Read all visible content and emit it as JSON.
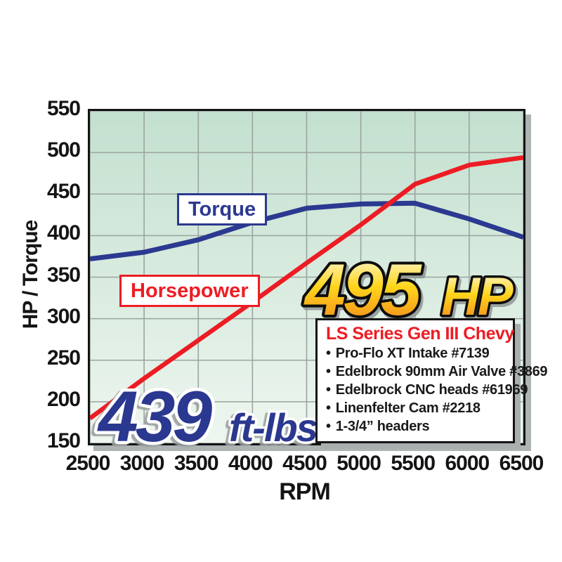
{
  "chart_data": {
    "type": "line",
    "title": "",
    "xlabel": "RPM",
    "ylabel": "HP / Torque",
    "x": [
      2500,
      3000,
      3500,
      4000,
      4500,
      5000,
      5500,
      6000,
      6500
    ],
    "xticks": [
      2500,
      3000,
      3500,
      4000,
      4500,
      5000,
      5500,
      6000,
      6500
    ],
    "yticks": [
      150,
      200,
      250,
      300,
      350,
      400,
      450,
      500,
      550
    ],
    "xlim": [
      2500,
      6500
    ],
    "ylim": [
      150,
      550
    ],
    "grid": true,
    "legend_position": "on-chart-boxes",
    "series": [
      {
        "name": "Torque",
        "color": "#2b3990",
        "values": [
          372,
          380,
          395,
          416,
          433,
          438,
          439,
          420,
          398
        ]
      },
      {
        "name": "Horsepower",
        "color": "#ed1c24",
        "values": [
          180,
          228,
          274,
          320,
          367,
          413,
          462,
          485,
          494
        ]
      }
    ],
    "annotations": {
      "hp_value": "495",
      "hp_unit": "HP",
      "torque_value": "439",
      "torque_unit": "ft-lbs"
    }
  },
  "legend": {
    "torque_label": "Torque",
    "horsepower_label": "Horsepower"
  },
  "callout": {
    "title": "LS Series Gen III Chevy",
    "bullet_glyph": "•",
    "items": [
      "Pro-Flo XT Intake #7139",
      "Edelbrock 90mm Air Valve #3869",
      "Edelbrock CNC heads #61969",
      "Linenfelter Cam #2218",
      "1-3/4” headers"
    ]
  },
  "colors": {
    "torque_blue": "#2b3990",
    "horsepower_red": "#ed1c24",
    "plot_bg_top": "#c3e0cf",
    "plot_bg_bottom": "#eef6ef",
    "gridline": "#9aa5a1",
    "axis_border": "#141414",
    "box_shadow_gray": "#aeb3b3",
    "hp_gradient_top": "#fffdf0",
    "hp_gradient_mid": "#ffd61f",
    "hp_gradient_bottom": "#f08019",
    "tq_outline_white": "#ffffff"
  }
}
